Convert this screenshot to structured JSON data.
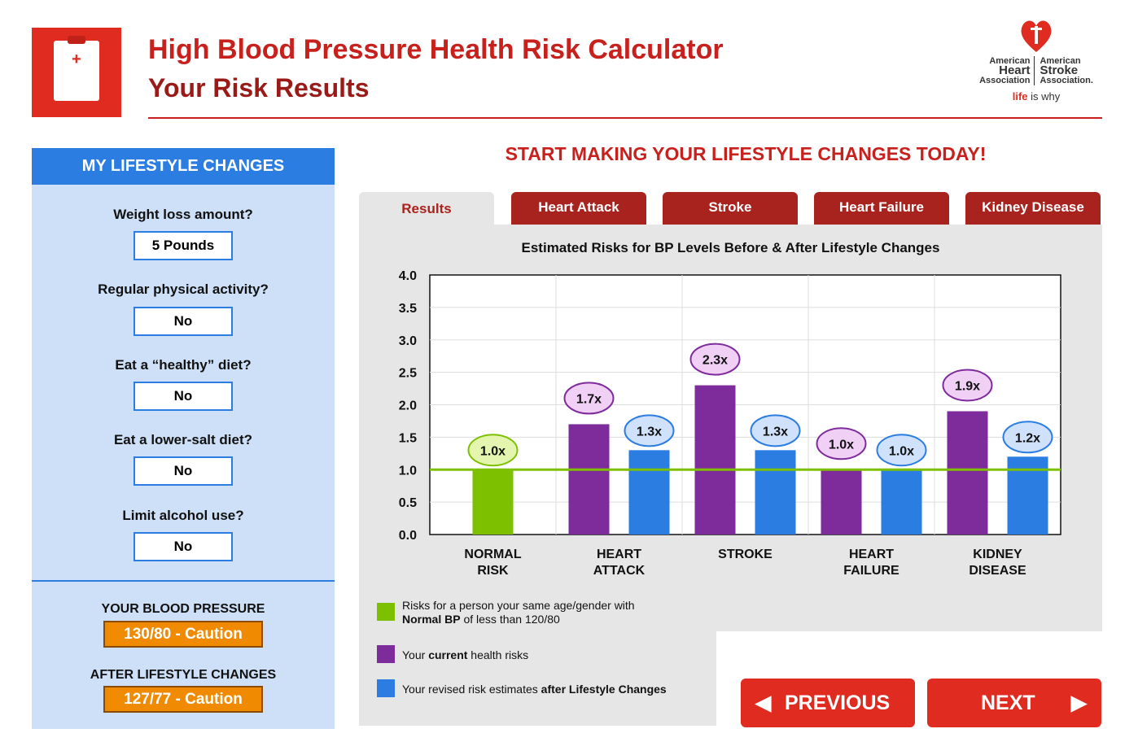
{
  "header": {
    "title": "High Blood Pressure Health Risk Calculator",
    "subtitle": "Your Risk Results",
    "logo": {
      "left1": "American",
      "left2": "Heart",
      "left3": "Association",
      "right1": "American",
      "right2": "Stroke",
      "right3": "Association.",
      "tag_red": "life",
      "tag_rest": " is why"
    }
  },
  "sidebar": {
    "heading": "MY LIFESTYLE CHANGES",
    "questions": [
      {
        "q": "Weight loss amount?",
        "a": "5 Pounds"
      },
      {
        "q": "Regular physical activity?",
        "a": "No"
      },
      {
        "q": "Eat a “healthy” diet?",
        "a": "No"
      },
      {
        "q": "Eat a lower-salt diet?",
        "a": "No"
      },
      {
        "q": "Limit alcohol use?",
        "a": "No"
      }
    ],
    "bp_label": "YOUR BLOOD PRESSURE",
    "bp_value": "130/80 - Caution",
    "after_label": "AFTER LIFESTYLE CHANGES",
    "after_value": "127/77 - Caution"
  },
  "main": {
    "headline": "START MAKING YOUR LIFESTYLE CHANGES TODAY!",
    "tabs": [
      "Results",
      "Heart Attack",
      "Stroke",
      "Heart Failure",
      "Kidney Disease"
    ],
    "legend": [
      {
        "color": "#7dc000",
        "l1": "Risks for a person your same age/gender with",
        "l2b": "Normal BP",
        "l2": " of less than 120/80"
      },
      {
        "color": "#7e2b9b",
        "pre": "Your ",
        "b": "current",
        "post": " health risks"
      },
      {
        "color": "#2b7de1",
        "pre": "Your revised risk estimates ",
        "b": "after Lifestyle Changes",
        "post": ""
      }
    ],
    "previous": "PREVIOUS",
    "next": "NEXT"
  },
  "chart_data": {
    "type": "bar",
    "title": "Estimated Risks for BP Levels Before & After Lifestyle Changes",
    "categories": [
      [
        "NORMAL",
        "RISK"
      ],
      [
        "HEART",
        "ATTACK"
      ],
      [
        "STROKE",
        ""
      ],
      [
        "HEART",
        "FAILURE"
      ],
      [
        "KIDNEY",
        "DISEASE"
      ]
    ],
    "ylim": [
      0,
      4
    ],
    "yticks": [
      "0.0",
      "0.5",
      "1.0",
      "1.5",
      "2.0",
      "2.5",
      "3.0",
      "3.5",
      "4.0"
    ],
    "reference_line": 1.0,
    "series": [
      {
        "name": "Normal BP",
        "color": "#7dc000",
        "values": [
          1.0,
          null,
          null,
          null,
          null
        ],
        "labels": [
          "1.0x",
          null,
          null,
          null,
          null
        ]
      },
      {
        "name": "Current",
        "color": "#7e2b9b",
        "values": [
          null,
          1.7,
          2.3,
          1.0,
          1.9
        ],
        "labels": [
          null,
          "1.7x",
          "2.3x",
          "1.0x",
          "1.9x"
        ]
      },
      {
        "name": "After Lifestyle Changes",
        "color": "#2b7de1",
        "values": [
          null,
          1.3,
          1.3,
          1.0,
          1.2
        ],
        "labels": [
          null,
          "1.3x",
          "1.3x",
          "1.0x",
          "1.2x"
        ]
      }
    ]
  }
}
